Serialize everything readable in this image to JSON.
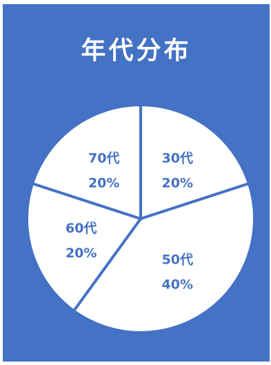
{
  "chart_data": {
    "type": "pie",
    "title": "年代分布",
    "categories": [
      "30代",
      "50代",
      "60代",
      "70代"
    ],
    "values": [
      20,
      40,
      20,
      20
    ],
    "value_labels": [
      "20%",
      "40%",
      "20%",
      "20%"
    ],
    "colors": {
      "background": "#4472C4",
      "slice": "#FFFFFF",
      "label": "#4472C4",
      "title": "#FFFFFF"
    },
    "legend": "none"
  }
}
